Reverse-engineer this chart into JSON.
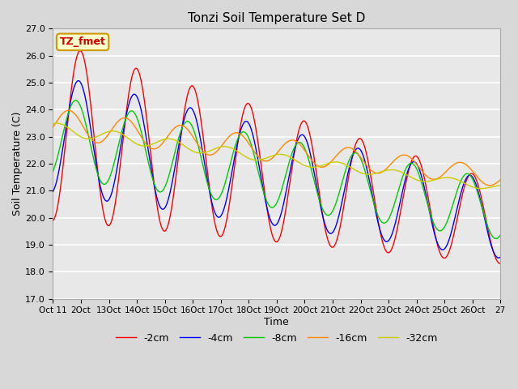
{
  "title": "Tonzi Soil Temperature Set D",
  "xlabel": "Time",
  "ylabel": "Soil Temperature (C)",
  "ylim": [
    17.0,
    27.0
  ],
  "yticks": [
    17.0,
    18.0,
    19.0,
    20.0,
    21.0,
    22.0,
    23.0,
    24.0,
    25.0,
    26.0,
    27.0
  ],
  "xtick_labels": [
    "Oct 11",
    "2Oct",
    "13Oct",
    "14Oct",
    "15Oct",
    "16Oct",
    "17Oct",
    "18Oct",
    "19Oct",
    "20Oct",
    "21Oct",
    "22Oct",
    "23Oct",
    "24Oct",
    "25Oct",
    "26Oct",
    "27"
  ],
  "series_labels": [
    "-2cm",
    "-4cm",
    "-8cm",
    "-16cm",
    "-32cm"
  ],
  "series_colors": [
    "#ff0000",
    "#0000ff",
    "#00cc00",
    "#ff8800",
    "#cccc00"
  ],
  "legend_label": "TZ_fmet",
  "legend_bg": "#ffffcc",
  "legend_border": "#cc9900",
  "legend_text_color": "#cc0000",
  "fig_bg_color": "#d8d8d8",
  "plot_bg_color": "#e8e8e8",
  "grid_color": "#ffffff"
}
